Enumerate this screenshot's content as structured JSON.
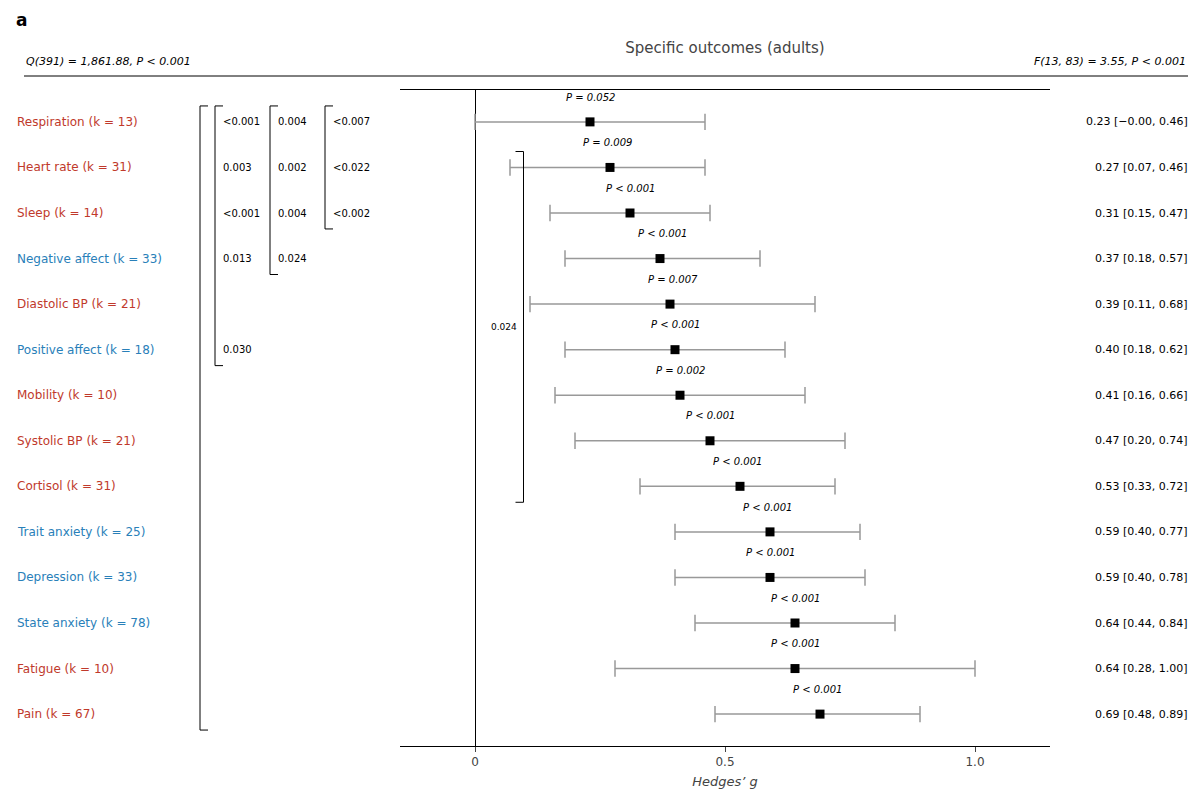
{
  "chart_data": {
    "type": "forest",
    "title": "Specific outcomes (adults)",
    "panel_label": "a",
    "q_stat": "Q(391) = 1,861.88, P < 0.001",
    "f_stat": "F(13, 83) = 3.55, P < 0.001",
    "xlabel": "Hedges’ g",
    "categories": [
      "Respiration (k = 13)",
      "Heart rate (k = 31)",
      "Sleep (k = 14)",
      "Negative affect (k = 33)",
      "Diastolic BP (k = 21)",
      "Positive affect (k = 18)",
      "Mobility (k = 10)",
      "Systolic BP (k = 21)",
      "Cortisol (k = 31)",
      "Trait anxiety (k = 25)",
      "Depression (k = 33)",
      "State anxiety (k = 78)",
      "Fatigue (k = 10)",
      "Pain (k = 67)"
    ],
    "colors": [
      "#c0392b",
      "#c0392b",
      "#c0392b",
      "#2980b9",
      "#c0392b",
      "#2980b9",
      "#c0392b",
      "#c0392b",
      "#c0392b",
      "#2980b9",
      "#2980b9",
      "#2980b9",
      "#c0392b",
      "#c0392b"
    ],
    "values": [
      0.23,
      0.27,
      0.31,
      0.37,
      0.39,
      0.4,
      0.41,
      0.47,
      0.53,
      0.59,
      0.59,
      0.64,
      0.64,
      0.69
    ],
    "ci_lower": [
      0.0,
      0.07,
      0.15,
      0.18,
      0.11,
      0.18,
      0.16,
      0.2,
      0.33,
      0.4,
      0.4,
      0.44,
      0.28,
      0.48
    ],
    "ci_upper": [
      0.46,
      0.46,
      0.47,
      0.57,
      0.68,
      0.62,
      0.66,
      0.74,
      0.72,
      0.77,
      0.78,
      0.84,
      1.0,
      0.89
    ],
    "p_values": [
      "P = 0.052",
      "P = 0.009",
      "P < 0.001",
      "P < 0.001",
      "P = 0.007",
      "P < 0.001",
      "P = 0.002",
      "P < 0.001",
      "P < 0.001",
      "P < 0.001",
      "P < 0.001",
      "P < 0.001",
      "P < 0.001",
      "P < 0.001"
    ],
    "effect_labels": [
      "0.23 [−0.00, 0.46]",
      "0.27 [0.07, 0.46]",
      "0.31 [0.15, 0.47]",
      "0.37 [0.18, 0.57]",
      "0.39 [0.11, 0.68]",
      "0.40 [0.18, 0.62]",
      "0.41 [0.16, 0.66]",
      "0.47 [0.20, 0.74]",
      "0.53 [0.33, 0.72]",
      "0.59 [0.40, 0.77]",
      "0.59 [0.40, 0.78]",
      "0.64 [0.44, 0.84]",
      "0.64 [0.28, 1.00]",
      "0.69 [0.48, 0.89]"
    ],
    "xlim": [
      -0.15,
      1.15
    ],
    "xticks": [
      0,
      0.5,
      {
        "value": 1.0,
        "label": "1.0"
      }
    ],
    "grid": false,
    "marker": "square",
    "brackets": [
      {
        "rows": [
          0,
          13
        ]
      },
      {
        "rows": [
          0,
          5
        ],
        "labels": [
          {
            "label": "<0.001",
            "row": 0
          },
          {
            "label": "0.003",
            "row": 1
          },
          {
            "label": "<0.001",
            "row": 2
          },
          {
            "label": "0.013",
            "row": 3
          },
          {
            "label": "0.030",
            "row": 5
          }
        ]
      },
      {
        "rows": [
          0,
          3
        ],
        "labels": [
          {
            "label": "0.004",
            "row": 0
          },
          {
            "label": "0.002",
            "row": 1
          },
          {
            "label": "0.004",
            "row": 2
          },
          {
            "label": "0.024",
            "row": 3
          }
        ]
      },
      {
        "rows": [
          0,
          2
        ],
        "labels": [
          {
            "label": "<0.007",
            "row": 0
          },
          {
            "label": "<0.022",
            "row": 1
          },
          {
            "label": "<0.002",
            "row": 2
          }
        ]
      }
    ],
    "right_bracket": {
      "rows": [
        1,
        8
      ],
      "label": "0.024"
    }
  }
}
